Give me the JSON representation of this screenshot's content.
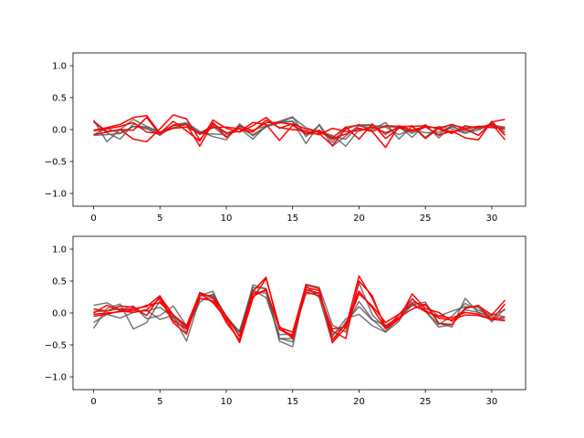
{
  "chart_data": [
    {
      "type": "line",
      "title": "",
      "xlabel": "",
      "ylabel": "",
      "xlim": [
        -1.55,
        32.55
      ],
      "ylim": [
        -1.2,
        1.2
      ],
      "xticks": [
        "0",
        "5",
        "10",
        "15",
        "20",
        "25",
        "30"
      ],
      "yticks": [
        "-1.0",
        "-0.5",
        "0.0",
        "0.5",
        "1.0"
      ],
      "x": [
        0,
        1,
        2,
        3,
        4,
        5,
        6,
        7,
        8,
        9,
        10,
        11,
        12,
        13,
        14,
        15,
        16,
        17,
        18,
        19,
        20,
        21,
        22,
        23,
        24,
        25,
        26,
        27,
        28,
        29,
        30,
        31
      ],
      "series": [
        {
          "color": "#555555",
          "values": [
            0.15,
            -0.19,
            0.0,
            0.16,
            0.05,
            -0.04,
            0.03,
            0.08,
            -0.08,
            0.05,
            -0.12,
            0.02,
            -0.08,
            0.05,
            0.12,
            0.13,
            -0.22,
            0.08,
            -0.2,
            0.04,
            0.07,
            0.06,
            0.05,
            0.03,
            -0.06,
            0.04,
            -0.08,
            0.07,
            0.03,
            0.05,
            0.06,
            0.02
          ]
        },
        {
          "color": "#555555",
          "values": [
            0.12,
            -0.05,
            -0.15,
            0.09,
            0.02,
            -0.09,
            0.07,
            0.09,
            -0.05,
            0.06,
            -0.06,
            0.02,
            -0.15,
            0.06,
            0.13,
            0.2,
            -0.11,
            0.07,
            -0.26,
            -0.1,
            0.07,
            0.08,
            -0.08,
            0.05,
            -0.12,
            0.08,
            -0.13,
            0.06,
            -0.05,
            -0.01,
            0.1,
            -0.05
          ]
        },
        {
          "color": "#555555",
          "values": [
            -0.09,
            -0.08,
            -0.06,
            0.05,
            0.01,
            -0.06,
            0.07,
            0.11,
            -0.03,
            -0.11,
            -0.16,
            0.09,
            -0.1,
            0.04,
            0.11,
            0.19,
            0.03,
            -0.04,
            -0.09,
            -0.26,
            0.0,
            0.0,
            0.11,
            -0.15,
            0.05,
            -0.12,
            0.05,
            0.01,
            -0.06,
            0.03,
            0.07,
            0.04
          ]
        },
        {
          "color": "#555555",
          "values": [
            -0.08,
            0.02,
            -0.06,
            0.05,
            0.04,
            -0.04,
            0.06,
            0.08,
            -0.06,
            -0.07,
            -0.08,
            0.04,
            -0.01,
            0.06,
            0.1,
            0.13,
            -0.05,
            -0.02,
            -0.11,
            -0.15,
            0.06,
            0.02,
            0.04,
            -0.08,
            0.0,
            -0.05,
            -0.04,
            0.04,
            -0.02,
            0.02,
            0.05,
            -0.01
          ]
        },
        {
          "color": "#ff0000",
          "values": [
            0.13,
            -0.03,
            0.0,
            -0.01,
            0.19,
            -0.08,
            0.07,
            0.08,
            -0.26,
            0.11,
            -0.12,
            0.06,
            -0.02,
            0.11,
            0.11,
            0.08,
            -0.07,
            -0.06,
            -0.25,
            0.01,
            0.08,
            -0.03,
            0.06,
            0.05,
            0.05,
            0.06,
            0.01,
            -0.06,
            0.06,
            0.02,
            0.09,
            -0.16
          ]
        },
        {
          "color": "#ff0000",
          "values": [
            -0.08,
            -0.04,
            0.0,
            -0.15,
            -0.19,
            0.01,
            0.23,
            0.17,
            -0.16,
            0.09,
            -0.05,
            -0.03,
            0.11,
            0.08,
            -0.17,
            0.07,
            -0.07,
            -0.01,
            -0.15,
            -0.07,
            0.02,
            -0.03,
            -0.28,
            0.06,
            -0.01,
            0.05,
            -0.09,
            -0.02,
            -0.13,
            -0.16,
            0.13,
            -0.09
          ]
        },
        {
          "color": "#ff0000",
          "values": [
            -0.01,
            0.03,
            0.08,
            0.19,
            0.22,
            -0.06,
            0.13,
            -0.02,
            -0.18,
            0.15,
            0.02,
            -0.04,
            0.06,
            0.19,
            0.02,
            0.09,
            0.01,
            -0.04,
            -0.13,
            0.04,
            -0.15,
            0.09,
            -0.14,
            0.02,
            0.06,
            -0.14,
            0.02,
            0.08,
            0.01,
            -0.09,
            0.12,
            0.16
          ]
        },
        {
          "color": "#ff0000",
          "values": [
            -0.02,
            0.01,
            0.05,
            0.11,
            -0.04,
            -0.06,
            0.02,
            0.04,
            -0.06,
            0.03,
            0.04,
            0.01,
            -0.04,
            0.15,
            0.03,
            0.0,
            -0.02,
            -0.08,
            0.02,
            -0.03,
            -0.02,
            0.04,
            -0.05,
            0.03,
            -0.03,
            0.04,
            0.03,
            -0.04,
            0.01,
            0.05,
            0.03,
            0.02
          ]
        }
      ]
    },
    {
      "type": "line",
      "title": "",
      "xlabel": "",
      "ylabel": "",
      "xlim": [
        -1.55,
        32.55
      ],
      "ylim": [
        -1.2,
        1.2
      ],
      "xticks": [
        "0",
        "5",
        "10",
        "15",
        "20",
        "25",
        "30"
      ],
      "yticks": [
        "-1.0",
        "-0.5",
        "0.0",
        "0.5",
        "1.0"
      ],
      "x": [
        0,
        1,
        2,
        3,
        4,
        5,
        6,
        7,
        8,
        9,
        10,
        11,
        12,
        13,
        14,
        15,
        16,
        17,
        18,
        19,
        20,
        21,
        22,
        23,
        24,
        25,
        26,
        27,
        28,
        29,
        30,
        31
      ],
      "series": [
        {
          "color": "#555555",
          "values": [
            -0.24,
            0.07,
            0.14,
            -0.25,
            -0.15,
            0.19,
            -0.05,
            -0.44,
            0.22,
            0.23,
            -0.05,
            -0.36,
            0.44,
            0.38,
            -0.44,
            -0.53,
            0.43,
            0.24,
            -0.47,
            -0.14,
            0.1,
            -0.11,
            -0.19,
            -0.08,
            0.13,
            0.17,
            -0.16,
            -0.22,
            0.23,
            0.0,
            -0.04,
            0.05
          ]
        },
        {
          "color": "#555555",
          "values": [
            0.12,
            0.16,
            0.05,
            0.11,
            -0.09,
            -0.04,
            0.11,
            -0.2,
            0.27,
            0.34,
            -0.12,
            -0.28,
            0.4,
            0.38,
            -0.4,
            -0.45,
            0.45,
            0.4,
            -0.19,
            -0.3,
            0.47,
            -0.03,
            -0.24,
            -0.1,
            0.22,
            0.03,
            -0.22,
            -0.18,
            0.05,
            0.01,
            -0.06,
            -0.11
          ]
        },
        {
          "color": "#555555",
          "values": [
            -0.15,
            -0.02,
            -0.08,
            0.01,
            0.04,
            -0.1,
            -0.04,
            -0.25,
            0.17,
            0.3,
            -0.05,
            -0.3,
            0.36,
            0.24,
            -0.34,
            -0.33,
            0.3,
            0.31,
            -0.37,
            -0.09,
            -0.02,
            -0.2,
            -0.3,
            -0.13,
            0.17,
            0.12,
            -0.05,
            0.03,
            0.1,
            0.09,
            -0.14,
            0.07
          ]
        },
        {
          "color": "#555555",
          "values": [
            0.02,
            0.03,
            0.07,
            0.04,
            0.03,
            0.09,
            -0.07,
            -0.3,
            0.26,
            0.28,
            -0.05,
            -0.31,
            0.33,
            0.31,
            -0.4,
            -0.4,
            0.36,
            0.3,
            -0.33,
            -0.2,
            0.18,
            -0.1,
            -0.29,
            -0.08,
            0.12,
            0.03,
            -0.18,
            -0.05,
            0.15,
            0.04,
            -0.02,
            -0.06
          ]
        },
        {
          "color": "#ff0000",
          "values": [
            -0.05,
            -0.02,
            0.03,
            0.01,
            0.05,
            0.23,
            -0.15,
            -0.33,
            0.32,
            0.24,
            -0.15,
            -0.42,
            0.3,
            0.35,
            -0.23,
            -0.3,
            0.44,
            0.38,
            -0.46,
            -0.23,
            0.58,
            0.23,
            -0.22,
            -0.07,
            0.06,
            0.14,
            -0.16,
            -0.18,
            0.08,
            0.11,
            -0.03,
            0.2
          ]
        },
        {
          "color": "#ff0000",
          "values": [
            0.06,
            0.03,
            0.11,
            0.09,
            -0.04,
            0.26,
            -0.03,
            -0.2,
            0.31,
            0.16,
            -0.09,
            -0.46,
            0.23,
            0.54,
            -0.21,
            -0.4,
            0.37,
            0.31,
            -0.28,
            -0.4,
            0.5,
            0.27,
            -0.25,
            -0.1,
            0.3,
            0.07,
            0.01,
            -0.13,
            0.07,
            0.12,
            -0.11,
            0.14
          ]
        },
        {
          "color": "#ff0000",
          "values": [
            0.0,
            0.12,
            0.04,
            0.07,
            0.1,
            0.27,
            -0.12,
            -0.25,
            0.3,
            0.25,
            -0.05,
            -0.37,
            0.34,
            0.56,
            -0.26,
            -0.35,
            0.4,
            0.35,
            -0.42,
            -0.17,
            0.34,
            0.08,
            -0.24,
            -0.03,
            0.22,
            0.04,
            -0.08,
            -0.11,
            -0.03,
            -0.04,
            -0.1,
            -0.12
          ]
        },
        {
          "color": "#ff0000",
          "values": [
            -0.02,
            0.0,
            0.02,
            0.04,
            0.12,
            0.16,
            -0.03,
            -0.22,
            0.23,
            0.19,
            -0.09,
            -0.45,
            0.26,
            0.37,
            -0.25,
            -0.38,
            0.33,
            0.27,
            -0.25,
            -0.22,
            0.3,
            0.11,
            -0.15,
            -0.02,
            0.15,
            0.02,
            -0.05,
            -0.08,
            0.01,
            -0.02,
            -0.09,
            -0.07
          ]
        }
      ]
    }
  ]
}
